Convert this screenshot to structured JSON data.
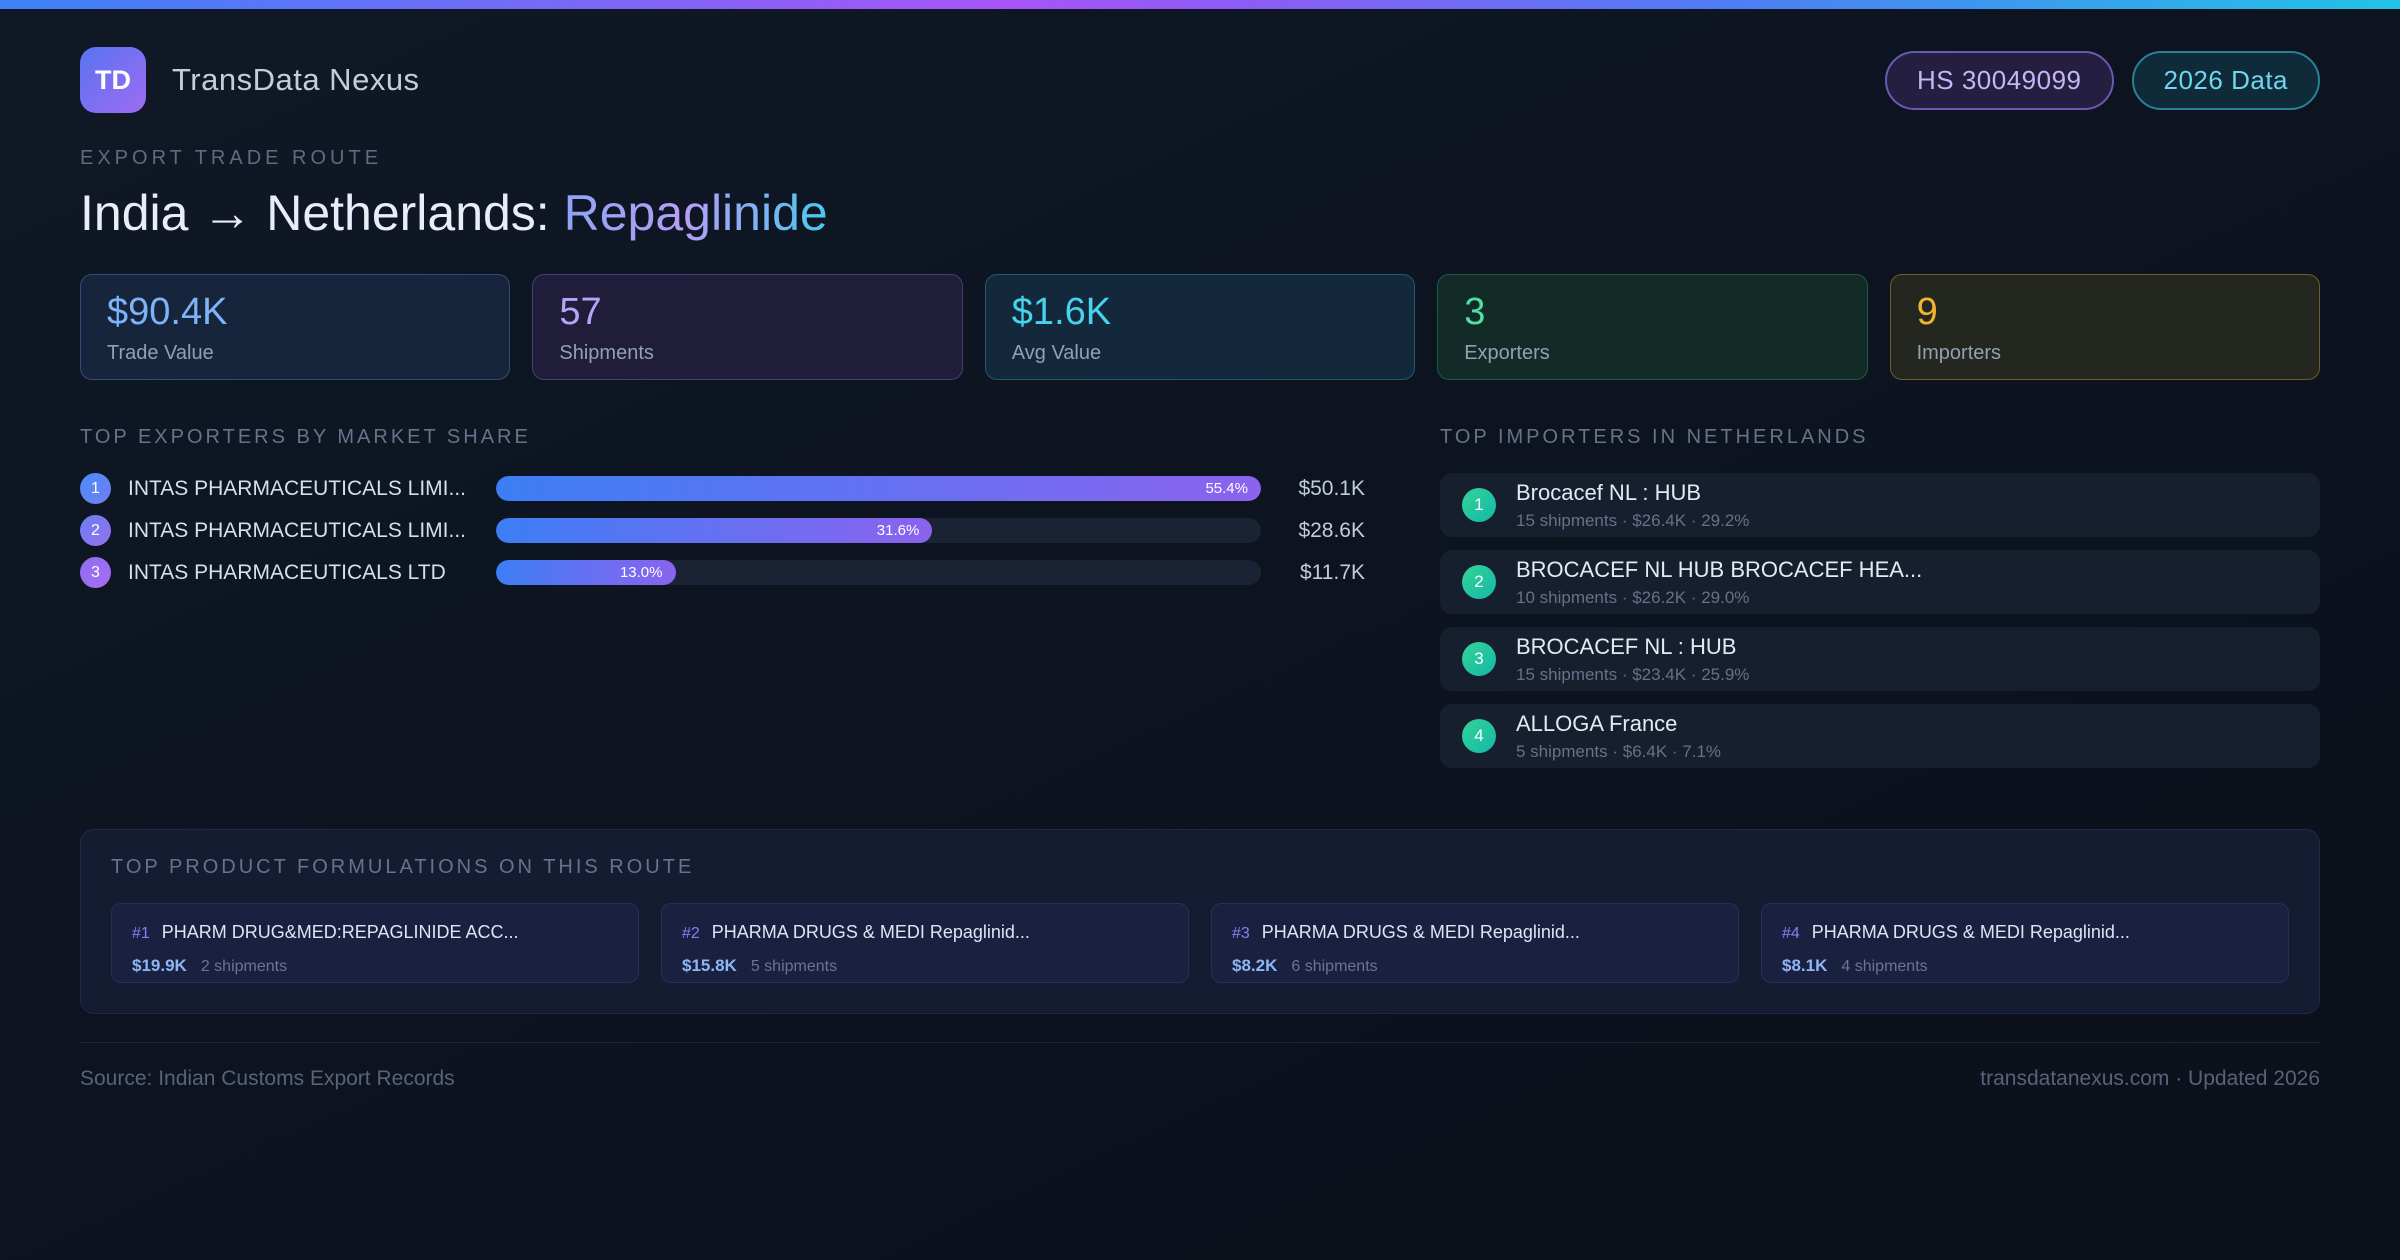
{
  "header": {
    "logo": "TD",
    "brand": "TransData Nexus",
    "badges": [
      {
        "label": "HS 30049099"
      },
      {
        "label": "2026 Data"
      }
    ]
  },
  "hero": {
    "eyebrow": "EXPORT TRADE ROUTE",
    "route": "India → Netherlands:",
    "product": "Repaglinide"
  },
  "stats": [
    {
      "value": "$90.4K",
      "label": "Trade Value",
      "accent": "#7db4f9",
      "bg": "#16253c",
      "border": "#2f4d79"
    },
    {
      "value": "57",
      "label": "Shipments",
      "accent": "#b7a3f7",
      "bg": "#1f1d3a",
      "border": "#473e77"
    },
    {
      "value": "$1.6K",
      "label": "Avg Value",
      "accent": "#45d4ec",
      "bg": "#13283b",
      "border": "#1e5b74"
    },
    {
      "value": "3",
      "label": "Exporters",
      "accent": "#52e0a1",
      "bg": "#122b26",
      "border": "#1d5a44"
    },
    {
      "value": "9",
      "label": "Importers",
      "accent": "#f2b42e",
      "bg": "#24271f",
      "border": "#6e5d2b"
    }
  ],
  "exporters": {
    "title": "TOP EXPORTERS BY MARKET SHARE",
    "items": [
      {
        "rank": "1",
        "name": "INTAS PHARMACEUTICALS LIMI...",
        "share_pct": 55.4,
        "share_label": "55.4%",
        "value_label": "$50.1K"
      },
      {
        "rank": "2",
        "name": "INTAS PHARMACEUTICALS LIMI...",
        "share_pct": 31.6,
        "share_label": "31.6%",
        "value_label": "$28.6K"
      },
      {
        "rank": "3",
        "name": "INTAS PHARMACEUTICALS LTD",
        "share_pct": 13.0,
        "share_label": "13.0%",
        "value_label": "$11.7K"
      }
    ]
  },
  "importers": {
    "title": "TOP IMPORTERS IN NETHERLANDS",
    "items": [
      {
        "rank": "1",
        "name": "Brocacef NL : HUB",
        "detail": "15 shipments · $26.4K · 29.2%"
      },
      {
        "rank": "2",
        "name": "BROCACEF NL HUB BROCACEF HEA...",
        "detail": "10 shipments · $26.2K · 29.0%"
      },
      {
        "rank": "3",
        "name": "BROCACEF NL : HUB",
        "detail": "15 shipments · $23.4K · 25.9%"
      },
      {
        "rank": "4",
        "name": "ALLOGA France",
        "detail": "5 shipments · $6.4K · 7.1%"
      }
    ]
  },
  "products": {
    "title": "TOP PRODUCT FORMULATIONS ON THIS ROUTE",
    "items": [
      {
        "rank": "#1",
        "name": "PHARM DRUG&MED:REPAGLINIDE ACC...",
        "value": "$19.9K",
        "shipments": "2 shipments"
      },
      {
        "rank": "#2",
        "name": "PHARMA DRUGS & MEDI Repaglinid...",
        "value": "$15.8K",
        "shipments": "5 shipments"
      },
      {
        "rank": "#3",
        "name": "PHARMA DRUGS & MEDI Repaglinid...",
        "value": "$8.2K",
        "shipments": "6 shipments"
      },
      {
        "rank": "#4",
        "name": "PHARMA DRUGS & MEDI Repaglinid...",
        "value": "$8.1K",
        "shipments": "4 shipments"
      }
    ]
  },
  "footer": {
    "source": "Source: Indian Customs Export Records",
    "site": "transdatanexus.com · Updated 2026"
  }
}
